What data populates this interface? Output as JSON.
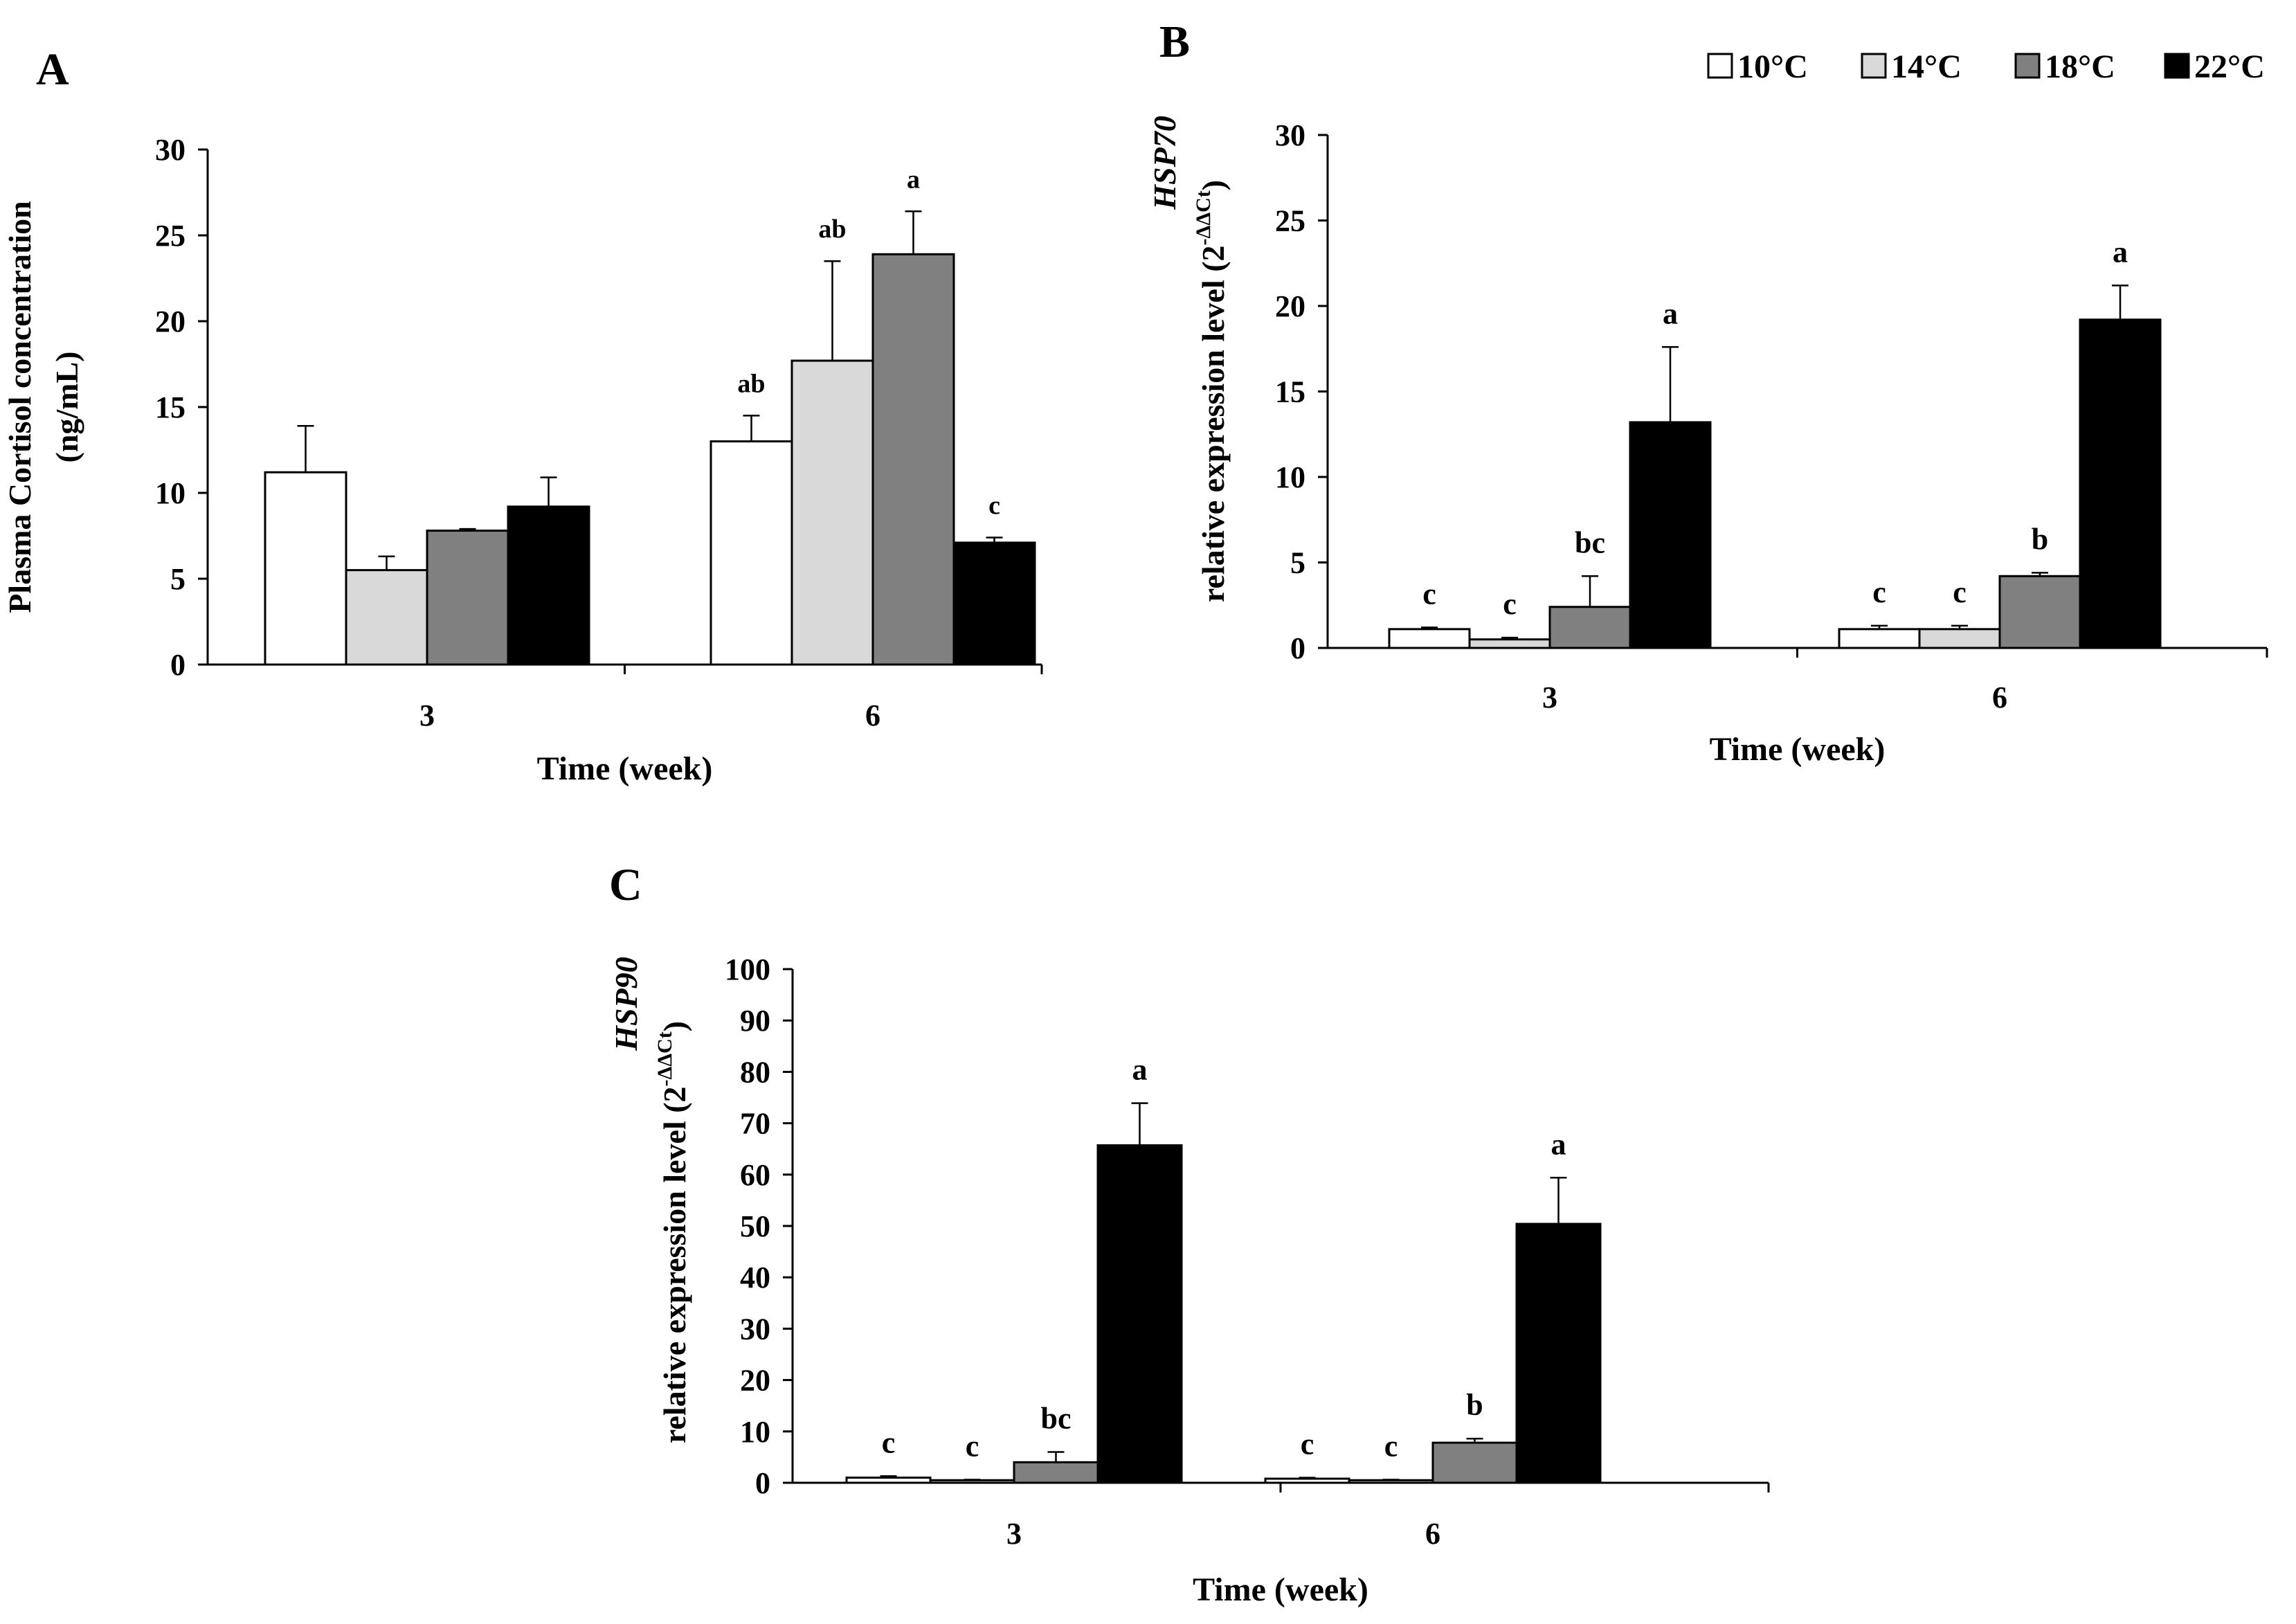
{
  "legend": [
    {
      "label": "10°C",
      "color": "#ffffff"
    },
    {
      "label": "14°C",
      "color": "#d9d9d9"
    },
    {
      "label": "18°C",
      "color": "#808080"
    },
    {
      "label": "22°C",
      "color": "#000000"
    }
  ],
  "chart_data": [
    {
      "panel": "A",
      "type": "bar",
      "categories": [
        "3",
        "6"
      ],
      "xlabel": "Time (week)",
      "ylabel_lines": [
        "Plasma Cortisol concentration",
        "(ng/mL)"
      ],
      "ylim": [
        0,
        30
      ],
      "yticks": [
        0,
        5,
        10,
        15,
        20,
        25,
        30
      ],
      "series": [
        {
          "name": "10°C",
          "values": [
            11.2,
            13.0
          ],
          "errors": [
            2.7,
            1.5
          ],
          "letters": [
            "",
            "ab"
          ]
        },
        {
          "name": "14°C",
          "values": [
            5.5,
            17.7
          ],
          "errors": [
            0.8,
            5.8
          ],
          "letters": [
            "",
            "ab"
          ]
        },
        {
          "name": "18°C",
          "values": [
            7.8,
            23.9
          ],
          "errors": [
            0.1,
            2.5
          ],
          "letters": [
            "",
            "a"
          ]
        },
        {
          "name": "22°C",
          "values": [
            9.2,
            7.1
          ],
          "errors": [
            1.7,
            0.3
          ],
          "letters": [
            "",
            "c"
          ]
        }
      ]
    },
    {
      "panel": "B",
      "type": "bar",
      "categories": [
        "3",
        "6"
      ],
      "xlabel": "Time (week)",
      "ylabel_italic": "HSP70",
      "ylabel_line2": "relative expression level (2",
      "ylabel_sup": "-ΔΔCt",
      "ylabel_close": ")",
      "ylim": [
        0,
        30
      ],
      "yticks": [
        0,
        5,
        10,
        15,
        20,
        25,
        30
      ],
      "series": [
        {
          "name": "10°C",
          "values": [
            1.1,
            1.1
          ],
          "errors": [
            0.1,
            0.2
          ],
          "letters": [
            "c",
            "c"
          ]
        },
        {
          "name": "14°C",
          "values": [
            0.5,
            1.1
          ],
          "errors": [
            0.1,
            0.2
          ],
          "letters": [
            "c",
            "c"
          ]
        },
        {
          "name": "18°C",
          "values": [
            2.4,
            4.2
          ],
          "errors": [
            1.8,
            0.2
          ],
          "letters": [
            "bc",
            "b"
          ]
        },
        {
          "name": "22°C",
          "values": [
            13.2,
            19.2
          ],
          "errors": [
            4.4,
            2.0
          ],
          "letters": [
            "a",
            "a"
          ]
        }
      ]
    },
    {
      "panel": "C",
      "type": "bar",
      "categories": [
        "3",
        "6"
      ],
      "xlabel": "Time (week)",
      "ylabel_italic": "HSP90",
      "ylabel_line2": "relative expression level (2",
      "ylabel_sup": "-ΔΔCt",
      "ylabel_close": ")",
      "ylim": [
        0,
        100
      ],
      "yticks": [
        0,
        10,
        20,
        30,
        40,
        50,
        60,
        70,
        80,
        90,
        100
      ],
      "series": [
        {
          "name": "10°C",
          "values": [
            1.0,
            0.8
          ],
          "errors": [
            0.3,
            0.2
          ],
          "letters": [
            "c",
            "c"
          ]
        },
        {
          "name": "14°C",
          "values": [
            0.5,
            0.5
          ],
          "errors": [
            0.1,
            0.1
          ],
          "letters": [
            "c",
            "c"
          ]
        },
        {
          "name": "18°C",
          "values": [
            4.0,
            7.8
          ],
          "errors": [
            2.0,
            0.8
          ],
          "letters": [
            "bc",
            "b"
          ]
        },
        {
          "name": "22°C",
          "values": [
            65.7,
            50.4
          ],
          "errors": [
            8.2,
            9.0
          ],
          "letters": [
            "a",
            "a"
          ]
        }
      ]
    }
  ]
}
